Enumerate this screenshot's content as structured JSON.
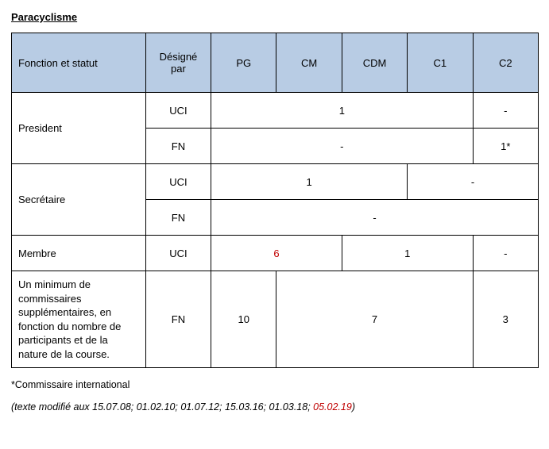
{
  "title": "Paracyclisme",
  "headers": {
    "function": "Fonction et statut",
    "designated": "Désigné par",
    "pg": "PG",
    "cm": "CM",
    "cdm": "CDM",
    "c1": "C1",
    "c2": "C2"
  },
  "rows": {
    "president": {
      "label": "President",
      "uci": {
        "by": "UCI",
        "pg_cm_cdm_c1": "1",
        "c2": "-"
      },
      "fn": {
        "by": "FN",
        "pg_cm_cdm_c1": "-",
        "c2": "1*"
      }
    },
    "secretaire": {
      "label": "Secrétaire",
      "uci": {
        "by": "UCI",
        "pg_cm_cdm": "1",
        "c1_c2": "-"
      },
      "fn": {
        "by": "FN",
        "all": "-"
      }
    },
    "membre": {
      "label": "Membre",
      "uci": {
        "by": "UCI",
        "pg_cm": "6",
        "cdm_c1": "1",
        "c2": "-"
      }
    },
    "minimum": {
      "label": "Un minimum de commissaires supplémentaires, en fonction du nombre de participants et de la nature de la course.",
      "fn": {
        "by": "FN",
        "pg": "10",
        "cm_cdm_c1": "7",
        "c2": "3"
      }
    }
  },
  "footnote": "*Commissaire international",
  "dates": {
    "prefix": "(texte modifié aux ",
    "black": "15.07.08; 01.02.10; 01.07.12; 15.03.16; 01.03.18; ",
    "red": "05.02.19",
    "suffix": ")"
  },
  "colors": {
    "header_bg": "#b8cce4",
    "highlight_text": "#c00000"
  }
}
